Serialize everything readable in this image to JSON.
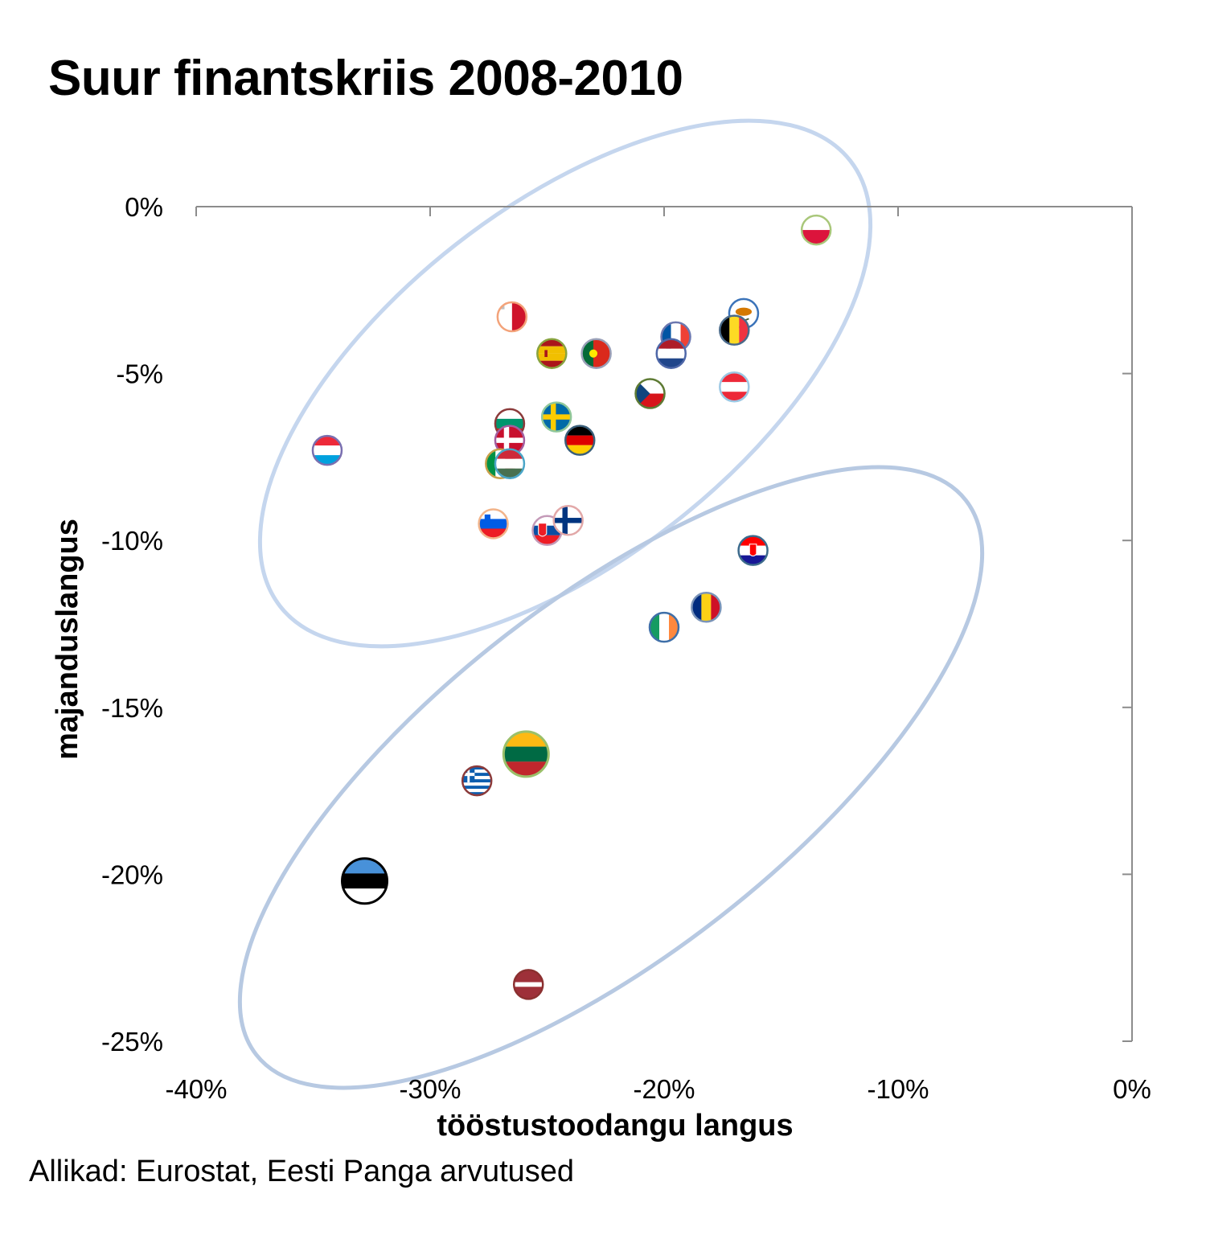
{
  "chart_data": {
    "type": "scatter",
    "title": "Suur finantskriis 2008-2010",
    "xlabel": "tööstustoodangu langus",
    "ylabel": "majanduslangus",
    "source": "Allikad: Eurostat, Eesti Panga arvutused",
    "xlim": [
      -40,
      0
    ],
    "ylim": [
      -25,
      0
    ],
    "x_ticks": [
      "-40%",
      "-30%",
      "-20%",
      "-10%",
      "0%"
    ],
    "y_ticks": [
      "0%",
      "-5%",
      "-10%",
      "-15%",
      "-20%",
      "-25%"
    ],
    "grid": false,
    "legend": "none",
    "ellipse_color_upper": "#c5d6ee",
    "ellipse_color_lower": "#b7c9e2",
    "points": [
      {
        "country": "Poland",
        "icon": "flag-poland",
        "x": -13.5,
        "y": -0.7
      },
      {
        "country": "Cyprus",
        "icon": "flag-cyprus",
        "x": -16.6,
        "y": -3.2
      },
      {
        "country": "Belgium",
        "icon": "flag-belgium",
        "x": -17.0,
        "y": -3.7
      },
      {
        "country": "Malta",
        "icon": "flag-malta",
        "x": -26.5,
        "y": -3.3
      },
      {
        "country": "France",
        "icon": "flag-france",
        "x": -19.5,
        "y": -3.9
      },
      {
        "country": "Netherlands",
        "icon": "flag-netherlands",
        "x": -19.7,
        "y": -4.4
      },
      {
        "country": "Spain",
        "icon": "flag-spain",
        "x": -24.8,
        "y": -4.4
      },
      {
        "country": "Portugal",
        "icon": "flag-portugal",
        "x": -22.9,
        "y": -4.4
      },
      {
        "country": "Austria",
        "icon": "flag-austria",
        "x": -17.0,
        "y": -5.4
      },
      {
        "country": "Czechia",
        "icon": "flag-czechia",
        "x": -20.6,
        "y": -5.6
      },
      {
        "country": "Sweden",
        "icon": "flag-sweden",
        "x": -24.6,
        "y": -6.3
      },
      {
        "country": "Bulgaria",
        "icon": "flag-bulgaria",
        "x": -26.6,
        "y": -6.5
      },
      {
        "country": "Denmark",
        "icon": "flag-denmark",
        "x": -26.6,
        "y": -7.0
      },
      {
        "country": "Germany",
        "icon": "flag-germany",
        "x": -23.6,
        "y": -7.0
      },
      {
        "country": "Luxembourg",
        "icon": "flag-luxembourg",
        "x": -34.4,
        "y": -7.3
      },
      {
        "country": "Italy",
        "icon": "flag-italy",
        "x": -27.0,
        "y": -7.7
      },
      {
        "country": "Hungary",
        "icon": "flag-hungary",
        "x": -26.6,
        "y": -7.7
      },
      {
        "country": "Slovenia",
        "icon": "flag-slovenia",
        "x": -27.3,
        "y": -9.5
      },
      {
        "country": "Slovakia",
        "icon": "flag-slovakia",
        "x": -25.0,
        "y": -9.7
      },
      {
        "country": "Finland",
        "icon": "flag-finland",
        "x": -24.1,
        "y": -9.4
      },
      {
        "country": "Croatia",
        "icon": "flag-croatia",
        "x": -16.2,
        "y": -10.3
      },
      {
        "country": "Romania",
        "icon": "flag-romania",
        "x": -18.2,
        "y": -12.0
      },
      {
        "country": "Ireland",
        "icon": "flag-ireland",
        "x": -20.0,
        "y": -12.6
      },
      {
        "country": "Lithuania",
        "icon": "flag-lithuania",
        "x": -25.9,
        "y": -16.4
      },
      {
        "country": "Greece",
        "icon": "flag-greece",
        "x": -28.0,
        "y": -17.2
      },
      {
        "country": "Estonia",
        "icon": "flag-estonia",
        "x": -32.8,
        "y": -20.2
      },
      {
        "country": "Latvia",
        "icon": "flag-latvia",
        "x": -25.8,
        "y": -23.3
      }
    ]
  }
}
